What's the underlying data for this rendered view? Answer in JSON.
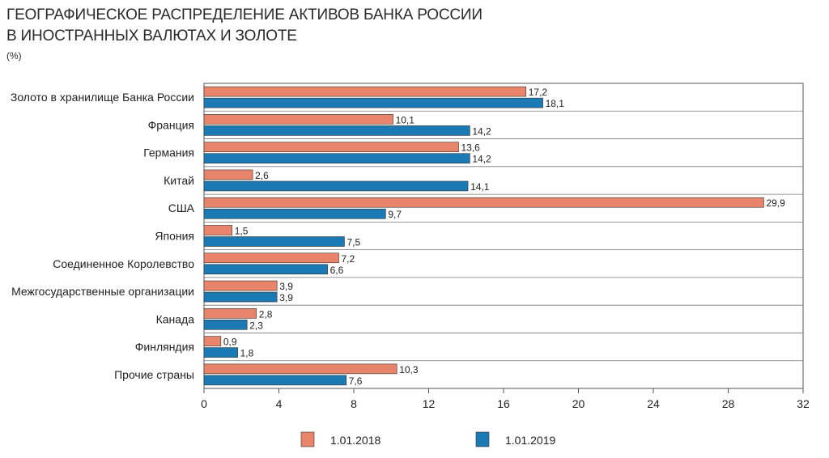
{
  "title_line1": "ГЕОГРАФИЧЕСКОЕ РАСПРЕДЕЛЕНИЕ АКТИВОВ БАНКА РОССИИ",
  "title_line2": "В ИНОСТРАННЫХ ВАЛЮТАХ И ЗОЛОТЕ",
  "unit": "(%)",
  "colors": {
    "s2018": "#E8846A",
    "s2019": "#1B79B4"
  },
  "chart_data": {
    "type": "bar",
    "orientation": "horizontal",
    "categories": [
      "Золото в хранилище Банка России",
      "Франция",
      "Германия",
      "Китай",
      "США",
      "Япония",
      "Соединенное Королевство",
      "Межгосударственные организации",
      "Канада",
      "Финляндия",
      "Прочие страны"
    ],
    "series": [
      {
        "name": "1.01.2018",
        "values": [
          17.2,
          10.1,
          13.6,
          2.6,
          29.9,
          1.5,
          7.2,
          3.9,
          2.8,
          0.9,
          10.3
        ],
        "labels": [
          "17,2",
          "10,1",
          "13,6",
          "2,6",
          "29,9",
          "1,5",
          "7,2",
          "3,9",
          "2,8",
          "0,9",
          "10,3"
        ]
      },
      {
        "name": "1.01.2019",
        "values": [
          18.1,
          14.2,
          14.2,
          14.1,
          9.7,
          7.5,
          6.6,
          3.9,
          2.3,
          1.8,
          7.6
        ],
        "labels": [
          "18,1",
          "14,2",
          "14,2",
          "14,1",
          "9,7",
          "7,5",
          "6,6",
          "3,9",
          "2,3",
          "1,8",
          "7,6"
        ]
      }
    ],
    "xlim": [
      0,
      32
    ],
    "xticks": [
      0,
      4,
      8,
      12,
      16,
      20,
      24,
      28,
      32
    ],
    "xtick_labels": [
      "0",
      "4",
      "8",
      "12",
      "16",
      "20",
      "24",
      "28",
      "32"
    ],
    "grid": "horizontal separators between categories",
    "legend_position": "bottom-center"
  }
}
